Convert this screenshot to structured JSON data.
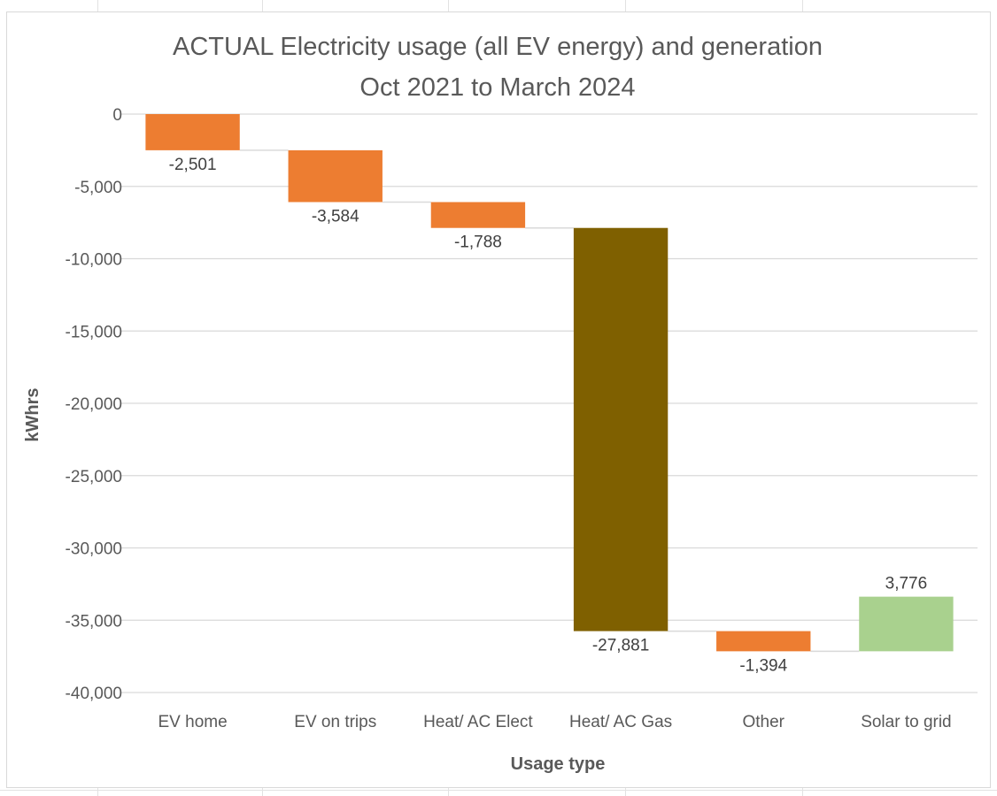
{
  "chart_data": {
    "type": "waterfall",
    "title_lines": [
      "ACTUAL Electricity usage (all EV energy) and generation",
      "Oct 2021 to March 2024"
    ],
    "xlabel": "Usage type",
    "ylabel": "kWhrs",
    "ylim": [
      -40000,
      0
    ],
    "y_ticks": [
      0,
      -5000,
      -10000,
      -15000,
      -20000,
      -25000,
      -30000,
      -35000,
      -40000
    ],
    "y_tick_labels": [
      "0",
      "-5,000",
      "-10,000",
      "-15,000",
      "-20,000",
      "-25,000",
      "-30,000",
      "-35,000",
      "-40,000"
    ],
    "grid": true,
    "categories": [
      "EV home",
      "EV on trips",
      "Heat/ AC Elect",
      "Heat/ AC Gas",
      "Other",
      "Solar to grid"
    ],
    "values": [
      -2501,
      -3584,
      -1788,
      -27881,
      -1394,
      3776
    ],
    "value_labels": [
      "-2,501",
      "-3,584",
      "-1,788",
      "-27,881",
      "-1,394",
      "3,776"
    ],
    "colors": [
      "#ed7d31",
      "#ed7d31",
      "#ed7d31",
      "#7f6000",
      "#ed7d31",
      "#a9d18e"
    ]
  }
}
